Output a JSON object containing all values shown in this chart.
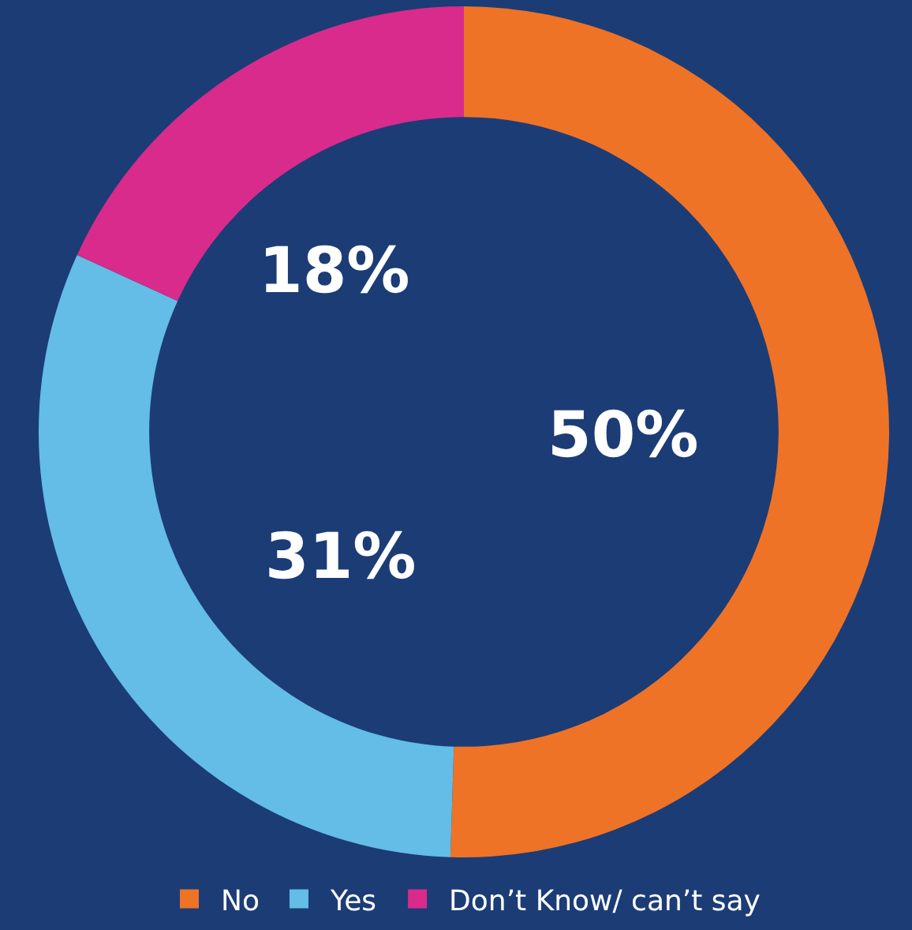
{
  "chart_data": {
    "type": "donut",
    "categories": [
      "No",
      "Yes",
      "Don’t Know/ can’t say"
    ],
    "values": [
      50,
      31,
      18
    ],
    "colors": [
      "#ee7326",
      "#63bde6",
      "#d92b8c"
    ],
    "value_labels": [
      "50%",
      "31%",
      "18%"
    ],
    "legend": "bottom"
  }
}
